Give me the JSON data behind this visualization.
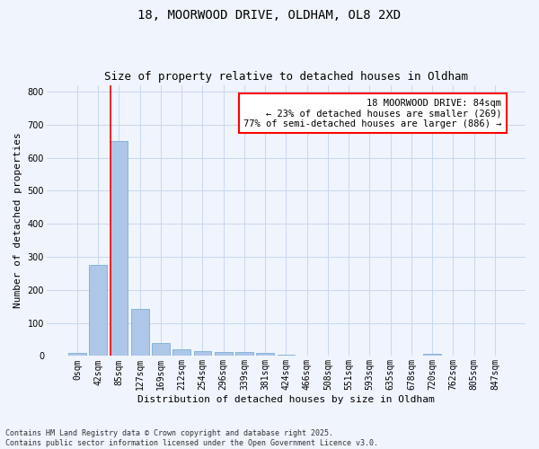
{
  "title_line1": "18, MOORWOOD DRIVE, OLDHAM, OL8 2XD",
  "title_line2": "Size of property relative to detached houses in Oldham",
  "xlabel": "Distribution of detached houses by size in Oldham",
  "ylabel": "Number of detached properties",
  "footer_line1": "Contains HM Land Registry data © Crown copyright and database right 2025.",
  "footer_line2": "Contains public sector information licensed under the Open Government Licence v3.0.",
  "categories": [
    "0sqm",
    "42sqm",
    "85sqm",
    "127sqm",
    "169sqm",
    "212sqm",
    "254sqm",
    "296sqm",
    "339sqm",
    "381sqm",
    "424sqm",
    "466sqm",
    "508sqm",
    "551sqm",
    "593sqm",
    "635sqm",
    "678sqm",
    "720sqm",
    "762sqm",
    "805sqm",
    "847sqm"
  ],
  "values": [
    8,
    275,
    650,
    142,
    38,
    20,
    14,
    12,
    12,
    10,
    5,
    0,
    0,
    0,
    0,
    0,
    0,
    6,
    0,
    0,
    0
  ],
  "bar_color": "#aec6e8",
  "bar_edge_color": "#7aafd4",
  "grid_color": "#c8d8ee",
  "background_color": "#f0f4fc",
  "plot_bg_color": "#f0f4fc",
  "annotation_text": "18 MOORWOOD DRIVE: 84sqm\n← 23% of detached houses are smaller (269)\n77% of semi-detached houses are larger (886) →",
  "annotation_box_color": "white",
  "annotation_box_edge_color": "red",
  "vline_x_index": 2,
  "vline_color": "red",
  "ylim": [
    0,
    820
  ],
  "yticks": [
    0,
    100,
    200,
    300,
    400,
    500,
    600,
    700,
    800
  ],
  "title_fontsize": 10,
  "subtitle_fontsize": 9,
  "xlabel_fontsize": 8,
  "ylabel_fontsize": 8,
  "tick_fontsize": 7,
  "annot_fontsize": 7.5,
  "footer_fontsize": 6
}
